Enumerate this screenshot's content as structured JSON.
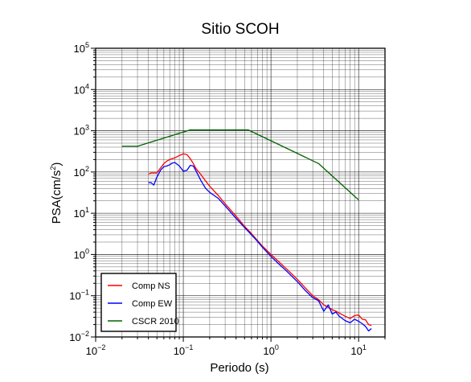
{
  "chart_data": {
    "type": "line",
    "title": "Sitio SCOH",
    "xlabel": "Periodo (s)",
    "ylabel_main": "PSA(cm/s",
    "ylabel_sup": "2",
    "ylabel_close": ")",
    "xscale": "log",
    "yscale": "log",
    "xlim": [
      0.01,
      20
    ],
    "ylim": [
      0.01,
      100000
    ],
    "grid": true,
    "legend_position": "bottom-left",
    "x_ticks": [
      {
        "base": "10",
        "exp": "−2",
        "value": 0.01
      },
      {
        "base": "10",
        "exp": "−1",
        "value": 0.1
      },
      {
        "base": "10",
        "exp": "0",
        "value": 1
      },
      {
        "base": "10",
        "exp": "1",
        "value": 10
      }
    ],
    "y_ticks": [
      {
        "base": "10",
        "exp": "−2",
        "value": 0.01
      },
      {
        "base": "10",
        "exp": "−1",
        "value": 0.1
      },
      {
        "base": "10",
        "exp": "0",
        "value": 1
      },
      {
        "base": "10",
        "exp": "1",
        "value": 10
      },
      {
        "base": "10",
        "exp": "2",
        "value": 100
      },
      {
        "base": "10",
        "exp": "3",
        "value": 1000
      },
      {
        "base": "10",
        "exp": "4",
        "value": 10000
      },
      {
        "base": "10",
        "exp": "5",
        "value": 100000
      }
    ],
    "series": [
      {
        "name": "Comp NS",
        "color": "#ff0000",
        "x": [
          0.04,
          0.043,
          0.05,
          0.055,
          0.06,
          0.065,
          0.07,
          0.075,
          0.08,
          0.09,
          0.1,
          0.11,
          0.12,
          0.13,
          0.14,
          0.16,
          0.18,
          0.2,
          0.25,
          0.3,
          0.4,
          0.5,
          0.6,
          0.7,
          0.8,
          1.0,
          1.2,
          1.5,
          2.0,
          2.5,
          3.0,
          3.5,
          4.0,
          4.5,
          5.0,
          5.5,
          6.0,
          7.0,
          8.0,
          9.0,
          10.0,
          11.0,
          12.0,
          13.0,
          14.0
        ],
        "y": [
          88,
          95,
          95,
          125,
          160,
          185,
          200,
          210,
          220,
          250,
          275,
          265,
          210,
          160,
          120,
          85,
          60,
          45,
          27,
          17,
          8.5,
          4.8,
          3.2,
          2.2,
          1.6,
          1.0,
          0.7,
          0.45,
          0.25,
          0.15,
          0.1,
          0.08,
          0.06,
          0.052,
          0.046,
          0.042,
          0.038,
          0.032,
          0.028,
          0.033,
          0.034,
          0.027,
          0.026,
          0.02,
          0.019
        ]
      },
      {
        "name": "Comp EW",
        "color": "#0000ff",
        "x": [
          0.04,
          0.043,
          0.046,
          0.05,
          0.055,
          0.06,
          0.065,
          0.07,
          0.075,
          0.08,
          0.09,
          0.1,
          0.11,
          0.12,
          0.13,
          0.14,
          0.16,
          0.18,
          0.2,
          0.25,
          0.3,
          0.4,
          0.5,
          0.6,
          0.7,
          0.8,
          1.0,
          1.2,
          1.5,
          2.0,
          2.5,
          3.0,
          3.5,
          4.0,
          4.5,
          5.0,
          5.5,
          6.0,
          7.0,
          8.0,
          9.0,
          10.0,
          11.0,
          12.0,
          13.0,
          14.0
        ],
        "y": [
          55,
          55,
          48,
          75,
          110,
          135,
          140,
          150,
          165,
          170,
          140,
          105,
          110,
          145,
          140,
          105,
          60,
          40,
          32,
          23,
          15,
          7.5,
          4.5,
          3.0,
          2.1,
          1.5,
          0.9,
          0.62,
          0.4,
          0.22,
          0.13,
          0.09,
          0.075,
          0.042,
          0.06,
          0.036,
          0.04,
          0.032,
          0.025,
          0.022,
          0.027,
          0.024,
          0.021,
          0.018,
          0.014,
          0.016
        ]
      },
      {
        "name": "CSCR 2010",
        "color": "#006400",
        "x": [
          0.02,
          0.03,
          0.12,
          0.55,
          3.5,
          10.0
        ],
        "y": [
          420,
          420,
          1050,
          1050,
          160,
          21
        ]
      }
    ]
  }
}
